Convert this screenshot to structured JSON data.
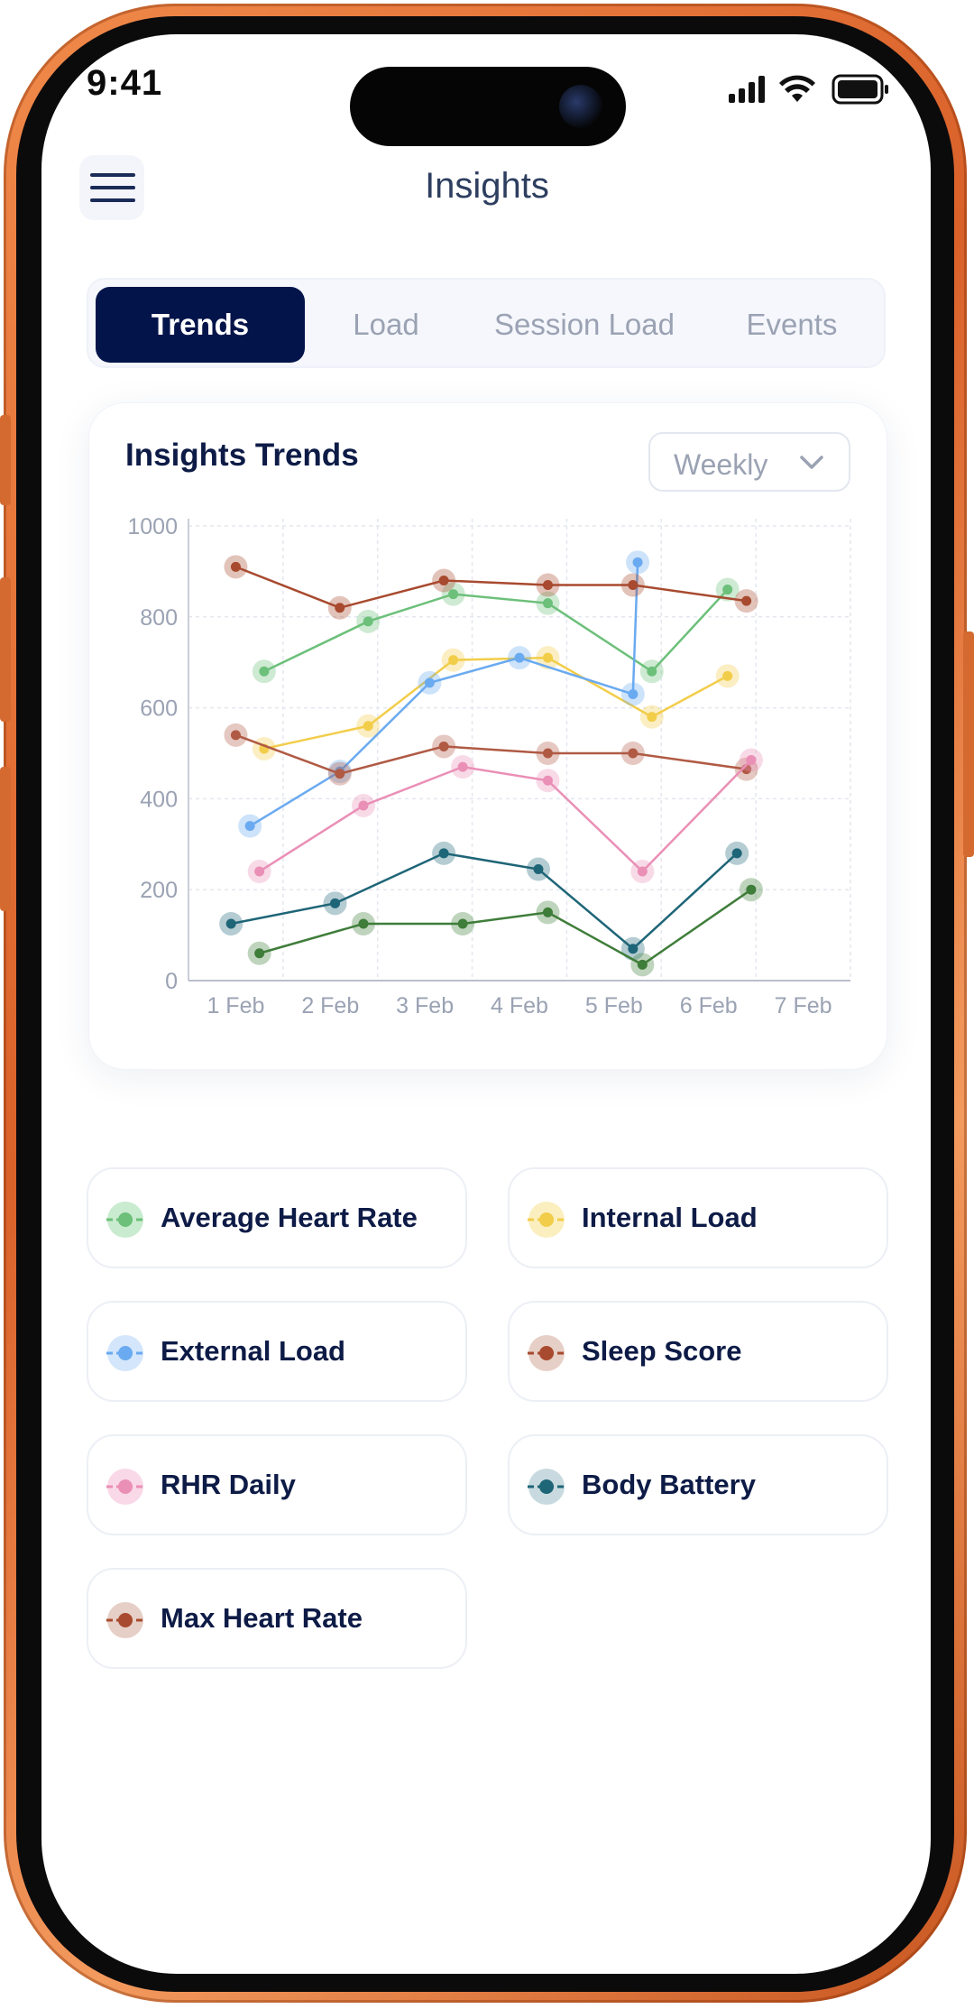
{
  "status": {
    "time": "9:41"
  },
  "header": {
    "title": "Insights"
  },
  "tabs": [
    {
      "label": "Trends",
      "active": true
    },
    {
      "label": "Load",
      "active": false
    },
    {
      "label": "Session Load",
      "active": false
    },
    {
      "label": "Events",
      "active": false
    }
  ],
  "card": {
    "title": "Insights Trends",
    "period": "Weekly"
  },
  "chart_data": {
    "type": "line",
    "categories": [
      "1 Feb",
      "2 Feb",
      "3 Feb",
      "4 Feb",
      "5 Feb",
      "6 Feb",
      "7 Feb"
    ],
    "ylim": [
      0,
      1000
    ],
    "yticks": [
      0,
      200,
      400,
      600,
      800,
      1000
    ],
    "grid": true,
    "series": [
      {
        "name": "Average Heart Rate",
        "color": "#6cc07a",
        "x": [
          1.3,
          2.4,
          3.3,
          4.3,
          5.4,
          6.2
        ],
        "y": [
          680,
          790,
          850,
          830,
          680,
          860
        ],
        "x_end": 7.0
      },
      {
        "name": "Internal Load",
        "color": "#f2cd4a",
        "x": [
          1.3,
          2.4,
          3.3,
          4.3,
          5.4,
          6.2
        ],
        "y": [
          510,
          560,
          705,
          710,
          580,
          670
        ],
        "x_end": 7.0
      },
      {
        "name": "External Load",
        "color": "#6aaaf0",
        "x": [
          1.15,
          2.1,
          3.05,
          4.0,
          5.2,
          5.25
        ],
        "y": [
          340,
          460,
          655,
          710,
          630,
          920
        ]
      },
      {
        "name": "Sleep Score",
        "color": "#b05a44",
        "x": [
          1.0,
          2.1,
          3.2,
          4.3,
          5.2,
          6.4
        ],
        "y": [
          540,
          455,
          515,
          500,
          500,
          465
        ]
      },
      {
        "name": "RHR Daily",
        "color": "#ea8fb6",
        "x": [
          1.25,
          2.35,
          3.4,
          4.3,
          5.3,
          6.45
        ],
        "y": [
          240,
          385,
          470,
          440,
          240,
          485
        ]
      },
      {
        "name": "Body Battery",
        "color": "#1e6577",
        "x": [
          0.95,
          2.05,
          3.2,
          4.2,
          5.2,
          6.3
        ],
        "y": [
          125,
          170,
          280,
          245,
          70,
          280
        ]
      },
      {
        "name": "Max Heart Rate",
        "color": "#a84a2f",
        "x": [
          1.0,
          2.1,
          3.2,
          4.3,
          5.2,
          6.4
        ],
        "y": [
          910,
          820,
          880,
          870,
          870,
          835
        ]
      }
    ],
    "extra_series": [
      {
        "name": "Max Heart Rate (dark green)",
        "color": "#3f7d3a",
        "x": [
          1.25,
          2.35,
          3.4,
          4.3,
          5.3,
          6.45
        ],
        "y": [
          60,
          125,
          125,
          150,
          35,
          200
        ]
      }
    ]
  },
  "legend": [
    {
      "label": "Average Heart Rate",
      "color": "#6cc07a",
      "halo": "#c9ebcf"
    },
    {
      "label": "Internal Load",
      "color": "#f2cd4a",
      "halo": "#fbefc0"
    },
    {
      "label": "External Load",
      "color": "#6aaaf0",
      "halo": "#d3e6fb"
    },
    {
      "label": "Sleep Score",
      "color": "#a84a2f",
      "halo": "#e6cfc6"
    },
    {
      "label": "RHR Daily",
      "color": "#ea8fb6",
      "halo": "#f9d9e7"
    },
    {
      "label": "Body Battery",
      "color": "#1e6577",
      "halo": "#c8dadf"
    },
    {
      "label": "Max Heart Rate",
      "color": "#a84a2f",
      "halo": "#e6cfc6"
    }
  ]
}
